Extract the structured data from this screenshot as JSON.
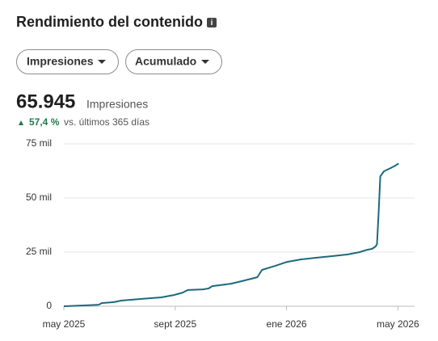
{
  "header": {
    "title": "Rendimiento del contenido",
    "filters": [
      "Impresiones",
      "Acumulado"
    ],
    "total": "65.945",
    "total_unit": "Impresiones",
    "change": "57,4 %",
    "change_note": "vs. últimos 365 días"
  },
  "chart_data": {
    "type": "line",
    "color": "#1b6a7e",
    "grid": true,
    "x": [
      0,
      0.8,
      1.25,
      1.37,
      1.8,
      2.06,
      2.8,
      3.5,
      3.95,
      4.27,
      4.45,
      5.0,
      5.2,
      5.33,
      6.0,
      6.4,
      6.86,
      6.95,
      7.12,
      7.6,
      8.02,
      8.5,
      9.05,
      9.6,
      10.2,
      10.63,
      10.9,
      11.07,
      11.2,
      11.25,
      11.3,
      11.37,
      11.5,
      11.74,
      11.9,
      12.03
    ],
    "values": [
      0,
      400,
      700,
      1500,
      1900,
      2600,
      3400,
      4100,
      5200,
      6300,
      7500,
      7800,
      8200,
      9300,
      10400,
      11600,
      13100,
      13400,
      16800,
      18700,
      20500,
      21600,
      22400,
      23100,
      23900,
      25000,
      26100,
      26500,
      27600,
      28700,
      40700,
      60000,
      62300,
      63800,
      64900,
      65945
    ],
    "xlim": [
      0,
      12.6
    ],
    "xticks": [
      {
        "value": 0,
        "label": "may 2025"
      },
      {
        "value": 4,
        "label": "sept 2025"
      },
      {
        "value": 8,
        "label": "ene 2026"
      },
      {
        "value": 12,
        "label": "may 2026"
      }
    ],
    "ylim": [
      0,
      75000
    ],
    "yticks": [
      0,
      {
        "value": 25000,
        "label": "25 mil"
      },
      {
        "value": 50000,
        "label": "50 mil"
      },
      {
        "value": 75000,
        "label": "75 mil"
      }
    ]
  }
}
